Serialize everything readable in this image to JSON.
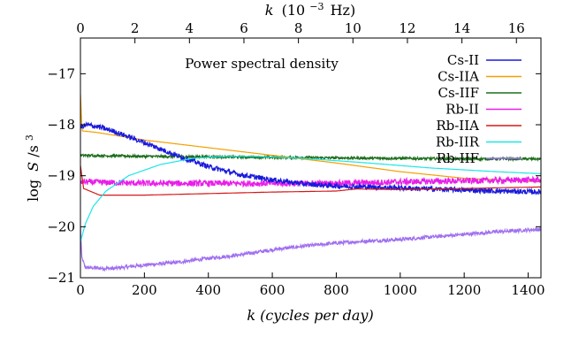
{
  "chart_data": {
    "type": "line",
    "title": "Power spectral density",
    "xlabel_bottom": "k (cycles per day)",
    "xlabel_top_var": "k",
    "xlabel_top_units": "(10",
    "xlabel_top_exp": "−3",
    "xlabel_top_hz": "Hz)",
    "ylabel_log": "log",
    "ylabel_S": "S",
    "ylabel_s": "/s",
    "ylabel_exp": "3",
    "xlim": [
      0,
      1440
    ],
    "ylim": [
      -21,
      -16.3
    ],
    "x2lim": [
      0,
      16.9
    ],
    "x_ticks": [
      0,
      200,
      400,
      600,
      800,
      1000,
      1200,
      1400
    ],
    "y_ticks": [
      -17,
      -18,
      -19,
      -20,
      -21
    ],
    "x2_ticks": [
      0,
      2,
      4,
      6,
      8,
      10,
      12,
      14,
      16
    ],
    "series": [
      {
        "name": "Cs-II",
        "color": "#1a1adb",
        "noise": 0.05,
        "points": [
          [
            0,
            -18.05
          ],
          [
            20,
            -18.0
          ],
          [
            60,
            -18.05
          ],
          [
            100,
            -18.12
          ],
          [
            200,
            -18.35
          ],
          [
            300,
            -18.6
          ],
          [
            400,
            -18.82
          ],
          [
            500,
            -18.98
          ],
          [
            600,
            -19.08
          ],
          [
            700,
            -19.16
          ],
          [
            800,
            -19.2
          ],
          [
            900,
            -19.22
          ],
          [
            1000,
            -19.24
          ],
          [
            1100,
            -19.26
          ],
          [
            1200,
            -19.28
          ],
          [
            1300,
            -19.3
          ],
          [
            1440,
            -19.32
          ]
        ]
      },
      {
        "name": "Cs-IIA",
        "color": "#f5a000",
        "noise": 0.0,
        "points": [
          [
            0,
            -17.4
          ],
          [
            5,
            -18.12
          ],
          [
            50,
            -18.15
          ],
          [
            200,
            -18.3
          ],
          [
            400,
            -18.45
          ],
          [
            600,
            -18.6
          ],
          [
            800,
            -18.75
          ],
          [
            1000,
            -18.92
          ],
          [
            1200,
            -19.05
          ],
          [
            1440,
            -19.12
          ]
        ]
      },
      {
        "name": "Cs-IIF",
        "color": "#1c6e1c",
        "noise": 0.025,
        "points": [
          [
            0,
            -18.6
          ],
          [
            200,
            -18.62
          ],
          [
            400,
            -18.63
          ],
          [
            600,
            -18.64
          ],
          [
            800,
            -18.65
          ],
          [
            1000,
            -18.66
          ],
          [
            1200,
            -18.67
          ],
          [
            1440,
            -18.67
          ]
        ]
      },
      {
        "name": "Rb-II",
        "color": "#e81ee8",
        "noise": 0.06,
        "points": [
          [
            0,
            -19.12
          ],
          [
            200,
            -19.15
          ],
          [
            400,
            -19.15
          ],
          [
            600,
            -19.15
          ],
          [
            800,
            -19.15
          ],
          [
            1000,
            -19.12
          ],
          [
            1200,
            -19.1
          ],
          [
            1440,
            -19.08
          ]
        ]
      },
      {
        "name": "Rb-IIA",
        "color": "#d81818",
        "noise": 0.0,
        "points": [
          [
            0,
            -18.8
          ],
          [
            10,
            -19.25
          ],
          [
            60,
            -19.38
          ],
          [
            200,
            -19.38
          ],
          [
            400,
            -19.35
          ],
          [
            600,
            -19.32
          ],
          [
            800,
            -19.3
          ],
          [
            860,
            -19.26
          ],
          [
            1000,
            -19.27
          ],
          [
            1200,
            -19.25
          ],
          [
            1440,
            -19.22
          ]
        ]
      },
      {
        "name": "Rb-IIR",
        "color": "#1ee6e6",
        "noise": 0.0,
        "points": [
          [
            0,
            -20.3
          ],
          [
            15,
            -19.95
          ],
          [
            40,
            -19.6
          ],
          [
            80,
            -19.3
          ],
          [
            150,
            -19.0
          ],
          [
            250,
            -18.78
          ],
          [
            350,
            -18.66
          ],
          [
            450,
            -18.62
          ],
          [
            550,
            -18.62
          ],
          [
            700,
            -18.66
          ],
          [
            900,
            -18.75
          ],
          [
            1100,
            -18.85
          ],
          [
            1300,
            -18.92
          ],
          [
            1440,
            -18.96
          ]
        ]
      },
      {
        "name": "Rb-IIF",
        "color": "#a070f0",
        "noise": 0.035,
        "points": [
          [
            0,
            -20.0
          ],
          [
            4,
            -20.6
          ],
          [
            15,
            -20.8
          ],
          [
            100,
            -20.82
          ],
          [
            200,
            -20.75
          ],
          [
            300,
            -20.7
          ],
          [
            400,
            -20.62
          ],
          [
            500,
            -20.55
          ],
          [
            600,
            -20.45
          ],
          [
            700,
            -20.38
          ],
          [
            800,
            -20.32
          ],
          [
            900,
            -20.28
          ],
          [
            1000,
            -20.25
          ],
          [
            1100,
            -20.2
          ],
          [
            1200,
            -20.15
          ],
          [
            1300,
            -20.1
          ],
          [
            1440,
            -20.05
          ]
        ]
      }
    ]
  }
}
